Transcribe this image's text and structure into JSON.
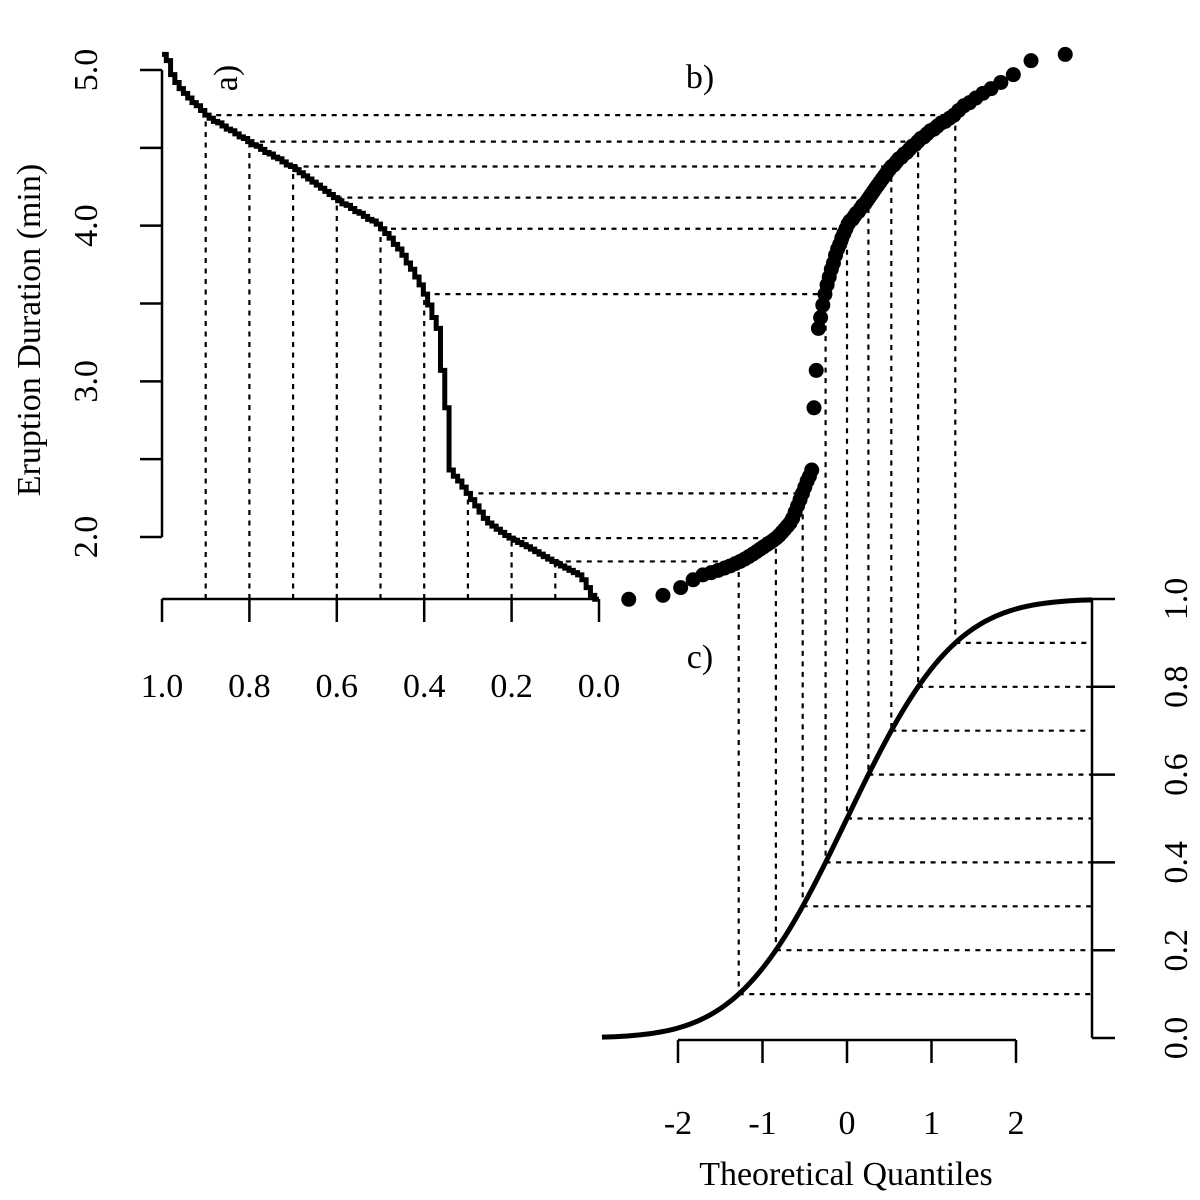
{
  "chart_data": [
    {
      "panel": "a)",
      "type": "line",
      "ylabel": "Eruption Duration (min)",
      "xlim": [
        1.0,
        0.0
      ],
      "ylim": [
        1.6,
        5.1
      ],
      "xticks": [
        "1.0",
        "0.8",
        "0.6",
        "0.4",
        "0.2",
        "0.0"
      ],
      "yticks": [
        "2.0",
        "3.0",
        "4.0",
        "5.0"
      ],
      "grid": false
    },
    {
      "panel": "b)",
      "type": "scatter"
    },
    {
      "panel": "c)",
      "type": "line",
      "xlabel": "Theoretical Quantiles",
      "xticks": [
        "-2",
        "-1",
        "0",
        "1",
        "2"
      ],
      "yticks": [
        "0.0",
        "0.2",
        "0.4",
        "0.6",
        "0.8",
        "1.0"
      ],
      "ylim": [
        0,
        1
      ]
    }
  ],
  "sorted_eruptions": [
    1.6,
    1.625,
    1.675,
    1.725,
    1.757,
    1.771,
    1.786,
    1.8,
    1.814,
    1.829,
    1.843,
    1.858,
    1.874,
    1.89,
    1.906,
    1.922,
    1.937,
    1.951,
    1.965,
    1.979,
    1.993,
    2.01,
    2.03,
    2.05,
    2.07,
    2.09,
    2.12,
    2.16,
    2.2,
    2.24,
    2.28,
    2.32,
    2.36,
    2.39,
    2.43,
    2.83,
    3.07,
    3.34,
    3.41,
    3.49,
    3.56,
    3.62,
    3.67,
    3.72,
    3.76,
    3.81,
    3.85,
    3.88,
    3.92,
    3.95,
    3.98,
    4.01,
    4.03,
    4.04,
    4.06,
    4.08,
    4.09,
    4.11,
    4.13,
    4.14,
    4.16,
    4.18,
    4.2,
    4.22,
    4.24,
    4.26,
    4.28,
    4.3,
    4.32,
    4.34,
    4.36,
    4.38,
    4.39,
    4.41,
    4.43,
    4.44,
    4.46,
    4.47,
    4.49,
    4.51,
    4.52,
    4.54,
    4.56,
    4.57,
    4.59,
    4.61,
    4.62,
    4.64,
    4.66,
    4.67,
    4.69,
    4.71,
    4.74,
    4.77,
    4.79,
    4.82,
    4.85,
    4.88,
    4.92,
    4.97,
    5.06,
    5.1
  ],
  "guide_probabilities": [
    0.1,
    0.2,
    0.3,
    0.4,
    0.5,
    0.6,
    0.7,
    0.8,
    0.9
  ],
  "colors": {
    "ink": "#000000"
  }
}
